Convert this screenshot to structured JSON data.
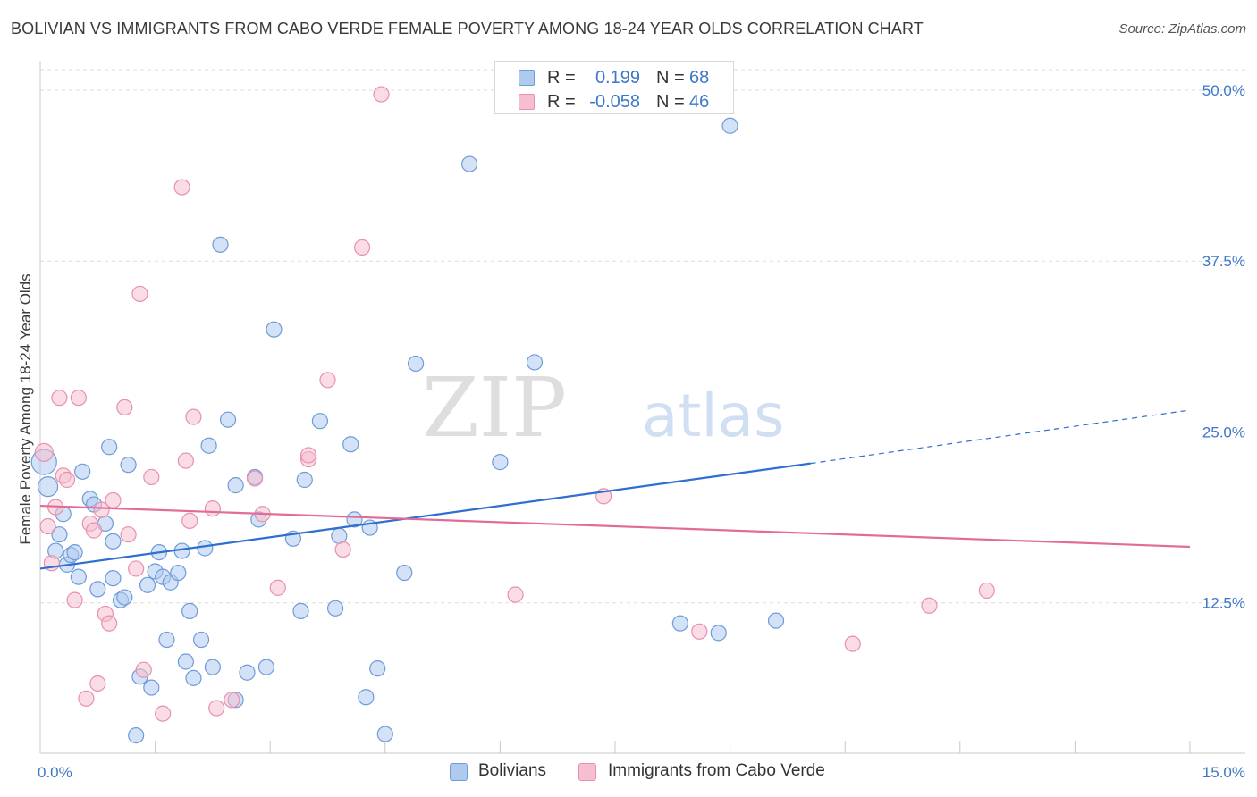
{
  "title": "BOLIVIAN VS IMMIGRANTS FROM CABO VERDE FEMALE POVERTY AMONG 18-24 YEAR OLDS CORRELATION CHART",
  "source": "Source: ZipAtlas.com",
  "watermark": {
    "part1": "ZIP",
    "part2": "atlas"
  },
  "colors": {
    "blue_fill": "#aecbee",
    "blue_stroke": "#6f9bd8",
    "blue_line": "#2e6fd0",
    "pink_fill": "#f6bfd0",
    "pink_stroke": "#e890ad",
    "pink_line": "#e26b9a",
    "tick_label": "#3b78c8",
    "grid": "#dcdcdc"
  },
  "legend_top": {
    "rows": [
      {
        "r_label": "R =",
        "r_value": "0.199",
        "n_label": "N =",
        "n_value": "68",
        "color": "blue"
      },
      {
        "r_label": "R =",
        "r_value": "-0.058",
        "n_label": "N =",
        "n_value": "46",
        "color": "pink"
      }
    ]
  },
  "legend_bottom": [
    {
      "label": "Bolivians",
      "color": "blue"
    },
    {
      "label": "Immigrants from Cabo Verde",
      "color": "pink"
    }
  ],
  "chart_data": {
    "type": "scatter",
    "title": "BOLIVIAN VS IMMIGRANTS FROM CABO VERDE FEMALE POVERTY AMONG 18-24 YEAR OLDS CORRELATION CHART",
    "xlabel": "",
    "ylabel": "Female Poverty Among 18-24 Year Olds",
    "xlim": [
      0,
      15
    ],
    "ylim": [
      1.5,
      51.5
    ],
    "x_tick_labels": [
      {
        "value": 0,
        "label": "0.0%"
      },
      {
        "value": 15,
        "label": "15.0%"
      }
    ],
    "x_minor_ticks": [
      1.5,
      3.0,
      4.5,
      6.0,
      7.5,
      9.0,
      10.5,
      12.0,
      13.5,
      15.0
    ],
    "y_ticks": [
      {
        "value": 12.5,
        "label": "12.5%"
      },
      {
        "value": 25.0,
        "label": "25.0%"
      },
      {
        "value": 37.5,
        "label": "37.5%"
      },
      {
        "value": 50.0,
        "label": "50.0%"
      }
    ],
    "grid": true,
    "legend_position": "top-center",
    "series": [
      {
        "name": "Bolivians",
        "color": "blue",
        "points": [
          [
            0.05,
            22.8
          ],
          [
            0.1,
            21.0
          ],
          [
            0.2,
            16.3
          ],
          [
            0.25,
            17.5
          ],
          [
            0.3,
            19.0
          ],
          [
            0.35,
            15.3
          ],
          [
            0.4,
            16.0
          ],
          [
            0.45,
            16.2
          ],
          [
            0.5,
            14.4
          ],
          [
            0.55,
            22.1
          ],
          [
            0.65,
            20.1
          ],
          [
            0.7,
            19.7
          ],
          [
            0.75,
            13.5
          ],
          [
            0.85,
            18.3
          ],
          [
            0.9,
            23.9
          ],
          [
            0.95,
            14.3
          ],
          [
            0.95,
            17.0
          ],
          [
            1.05,
            12.7
          ],
          [
            1.1,
            12.9
          ],
          [
            1.15,
            22.6
          ],
          [
            1.25,
            2.8
          ],
          [
            1.3,
            7.1
          ],
          [
            1.4,
            13.8
          ],
          [
            1.45,
            6.3
          ],
          [
            1.5,
            14.8
          ],
          [
            1.55,
            16.2
          ],
          [
            1.6,
            14.4
          ],
          [
            1.65,
            9.8
          ],
          [
            1.7,
            14.0
          ],
          [
            1.8,
            14.7
          ],
          [
            1.85,
            16.3
          ],
          [
            1.9,
            8.2
          ],
          [
            1.95,
            11.9
          ],
          [
            2.0,
            7.0
          ],
          [
            2.1,
            9.8
          ],
          [
            2.15,
            16.5
          ],
          [
            2.2,
            24.0
          ],
          [
            2.25,
            7.8
          ],
          [
            2.35,
            38.7
          ],
          [
            2.45,
            25.9
          ],
          [
            2.55,
            5.4
          ],
          [
            2.55,
            21.1
          ],
          [
            2.7,
            7.4
          ],
          [
            2.8,
            21.7
          ],
          [
            2.85,
            18.6
          ],
          [
            2.95,
            7.8
          ],
          [
            3.05,
            32.5
          ],
          [
            3.3,
            17.2
          ],
          [
            3.4,
            11.9
          ],
          [
            3.45,
            21.5
          ],
          [
            3.65,
            25.8
          ],
          [
            3.85,
            12.1
          ],
          [
            3.9,
            17.4
          ],
          [
            4.05,
            24.1
          ],
          [
            4.1,
            18.6
          ],
          [
            4.25,
            5.6
          ],
          [
            4.3,
            18.0
          ],
          [
            4.4,
            7.7
          ],
          [
            4.5,
            2.9
          ],
          [
            4.75,
            14.7
          ],
          [
            4.9,
            30.0
          ],
          [
            5.6,
            44.6
          ],
          [
            6.0,
            22.8
          ],
          [
            6.45,
            30.1
          ],
          [
            8.35,
            11.0
          ],
          [
            8.85,
            10.3
          ],
          [
            9.6,
            11.2
          ],
          [
            9.0,
            47.4
          ]
        ]
      },
      {
        "name": "Immigrants from Cabo Verde",
        "color": "pink",
        "points": [
          [
            0.05,
            23.5
          ],
          [
            0.1,
            18.1
          ],
          [
            0.15,
            15.4
          ],
          [
            0.2,
            19.5
          ],
          [
            0.25,
            27.5
          ],
          [
            0.3,
            21.8
          ],
          [
            0.35,
            21.5
          ],
          [
            0.45,
            12.7
          ],
          [
            0.5,
            27.5
          ],
          [
            0.6,
            5.5
          ],
          [
            0.65,
            18.3
          ],
          [
            0.7,
            17.8
          ],
          [
            0.75,
            6.6
          ],
          [
            0.8,
            19.3
          ],
          [
            0.85,
            11.7
          ],
          [
            0.9,
            11.0
          ],
          [
            0.95,
            20.0
          ],
          [
            1.1,
            26.8
          ],
          [
            1.15,
            17.5
          ],
          [
            1.25,
            15.0
          ],
          [
            1.3,
            35.1
          ],
          [
            1.35,
            7.6
          ],
          [
            1.45,
            21.7
          ],
          [
            1.6,
            4.4
          ],
          [
            1.85,
            42.9
          ],
          [
            1.9,
            22.9
          ],
          [
            1.95,
            18.5
          ],
          [
            2.0,
            26.1
          ],
          [
            2.25,
            19.4
          ],
          [
            2.3,
            4.8
          ],
          [
            2.5,
            5.4
          ],
          [
            2.8,
            21.6
          ],
          [
            2.9,
            19.0
          ],
          [
            3.1,
            13.6
          ],
          [
            3.5,
            23.0
          ],
          [
            3.5,
            23.3
          ],
          [
            3.75,
            28.8
          ],
          [
            3.95,
            16.4
          ],
          [
            4.2,
            38.5
          ],
          [
            4.45,
            49.7
          ],
          [
            6.2,
            13.1
          ],
          [
            7.35,
            20.3
          ],
          [
            8.6,
            10.4
          ],
          [
            10.6,
            9.5
          ],
          [
            11.6,
            12.3
          ],
          [
            12.35,
            13.4
          ]
        ]
      }
    ],
    "trend_lines": [
      {
        "series": "Bolivians",
        "x_start": 0.0,
        "y_start": 15.0,
        "x_solid_end": 10.05,
        "y_solid_end": 22.7,
        "x_end": 15.0,
        "y_end": 26.6
      },
      {
        "series": "Immigrants from Cabo Verde",
        "x_start": 0.0,
        "y_start": 19.6,
        "x_end": 15.0,
        "y_end": 16.6
      }
    ]
  }
}
